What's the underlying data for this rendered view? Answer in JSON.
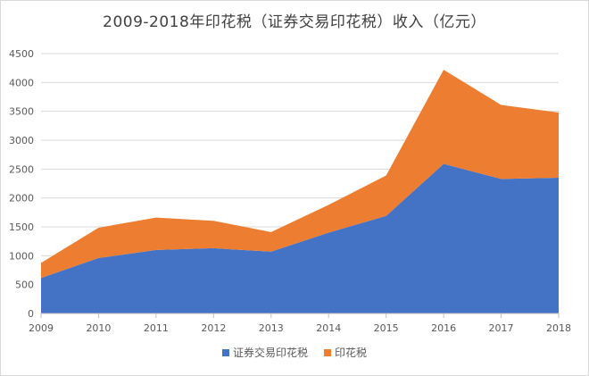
{
  "chart_data": {
    "type": "area",
    "stacked": true,
    "title": "2009-2018年印花税（证券交易印花税）收入（亿元）",
    "xlabel": "",
    "ylabel": "",
    "categories": [
      "2009",
      "2010",
      "2011",
      "2012",
      "2013",
      "2014",
      "2015",
      "2016",
      "2017",
      "2018"
    ],
    "ylim": [
      0,
      4500
    ],
    "yticks": [
      "0",
      "500",
      "1000",
      "1500",
      "2000",
      "2500",
      "3000",
      "3500",
      "4000",
      "4500"
    ],
    "grid": true,
    "legend_position": "bottom",
    "series": [
      {
        "name": "证券交易印花税",
        "color": "#4472C4",
        "values": [
          615,
          960,
          1100,
          1130,
          1070,
          1400,
          1690,
          2590,
          2330,
          2350
        ]
      },
      {
        "name": "印花税",
        "color": "#ED7D31",
        "values": [
          260,
          525,
          560,
          475,
          340,
          480,
          700,
          1630,
          1280,
          1130
        ]
      }
    ]
  }
}
